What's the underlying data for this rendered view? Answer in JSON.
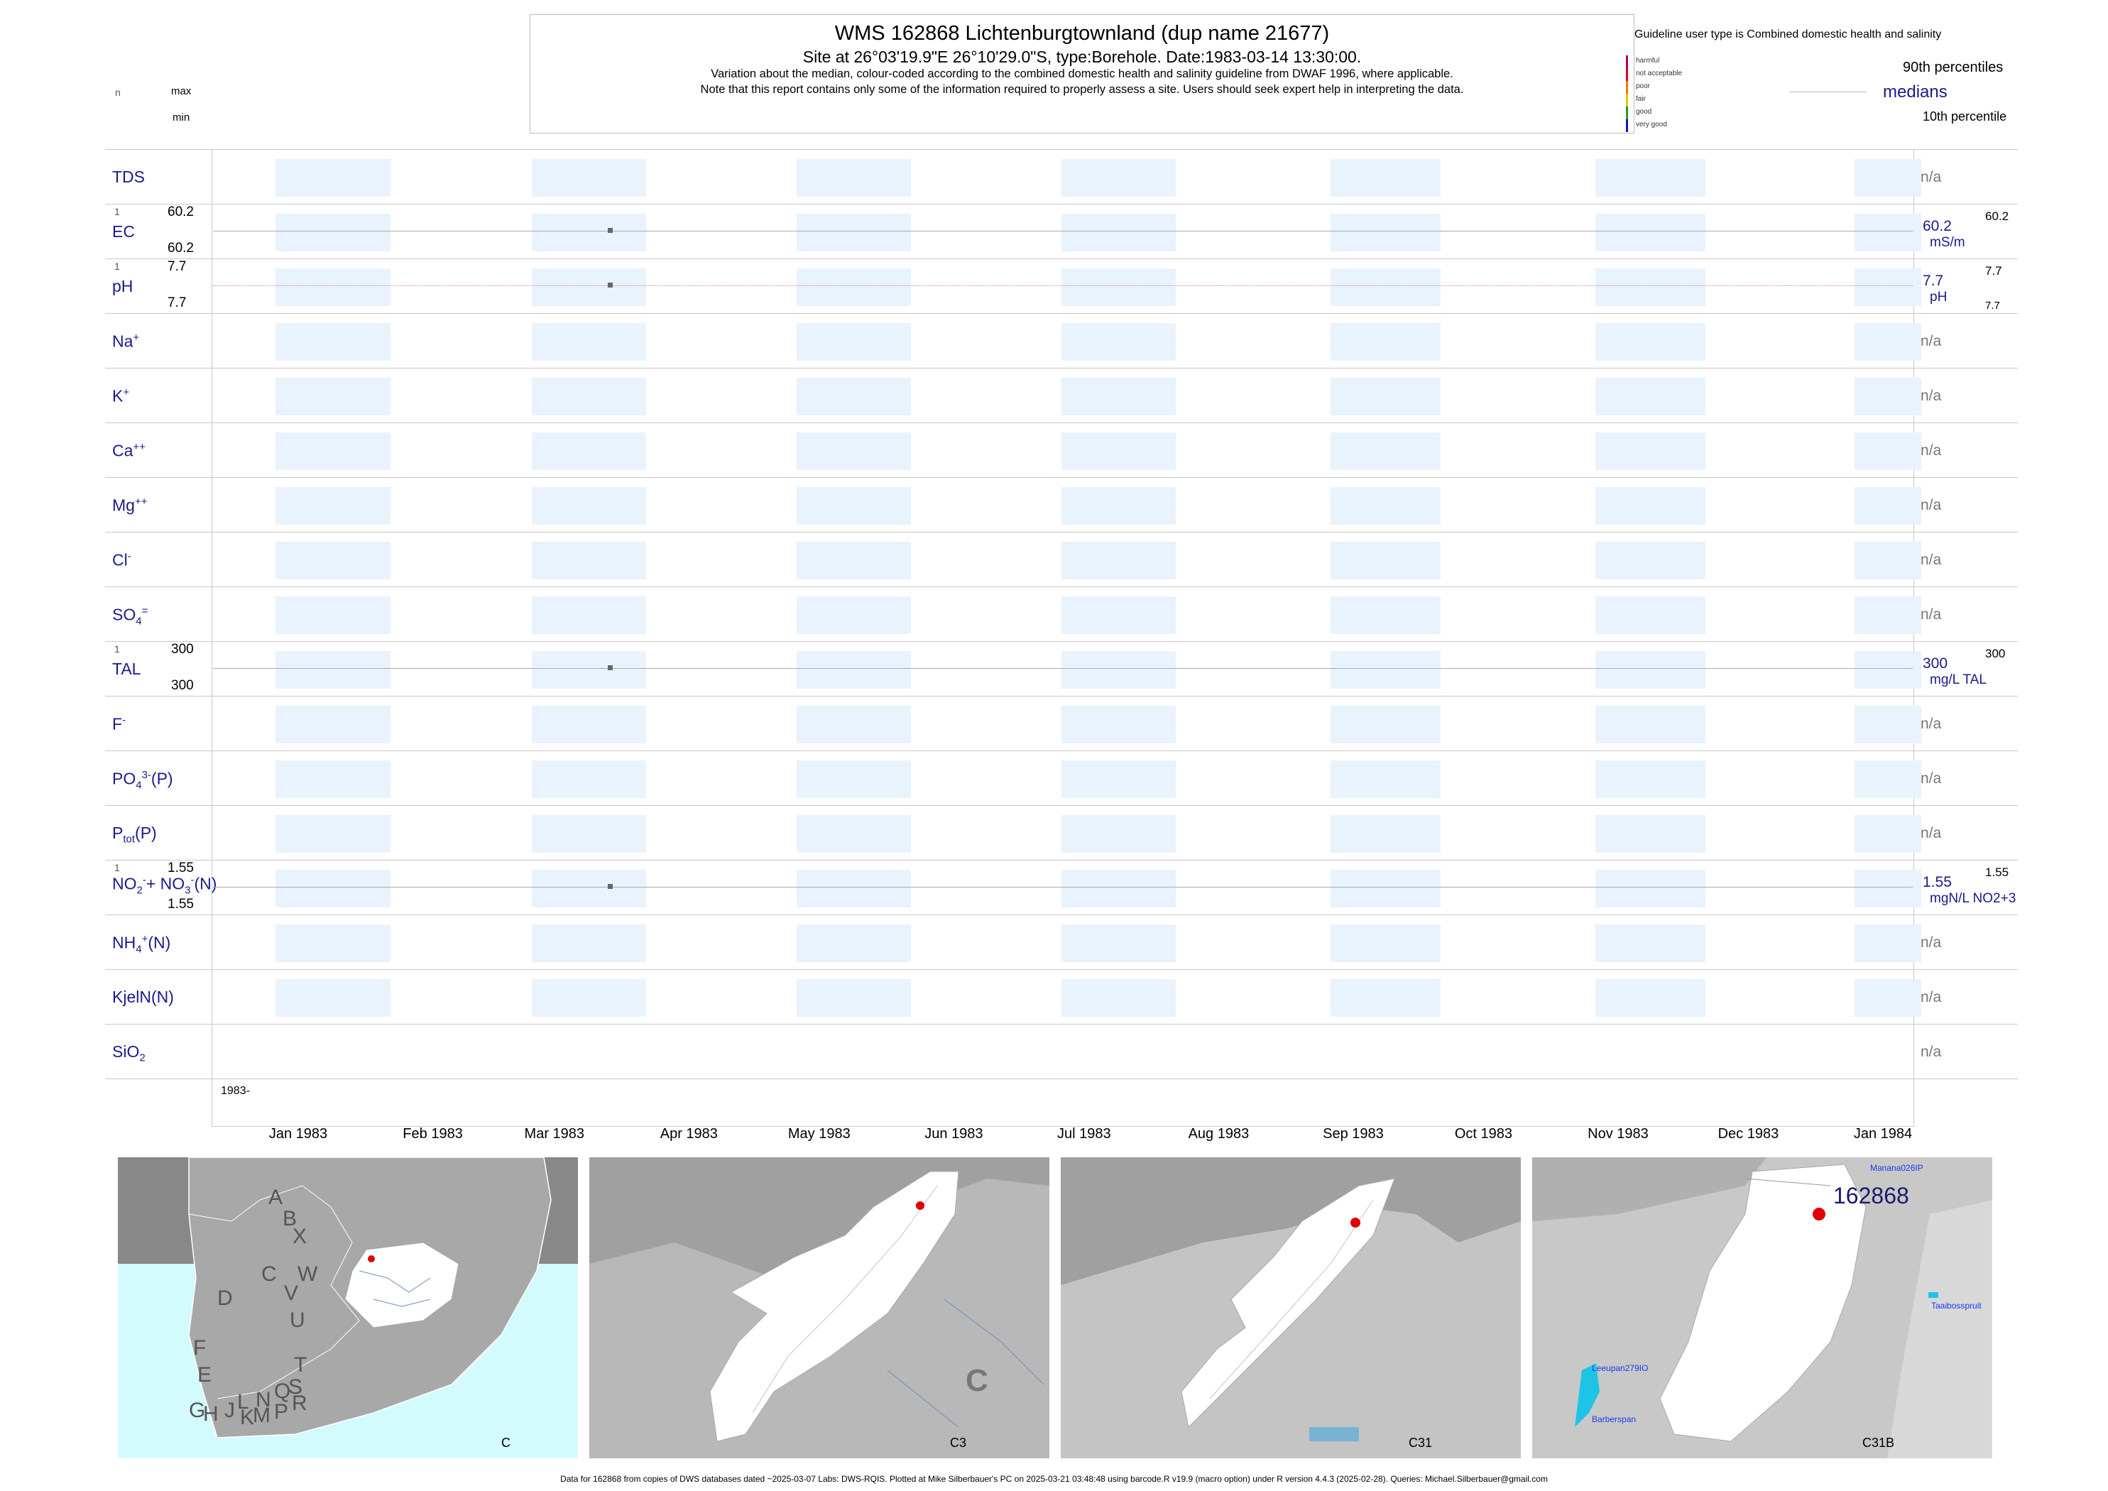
{
  "header": {
    "title": "WMS 162868  Lichtenburgtownland (dup name 21677)",
    "subtitle": "Site at 26°03'19.9\"E 26°10'29.0\"S, type:Borehole. Date:1983-03-14 13:30:00.",
    "note1": "Variation about the median,  colour-coded according to the combined domestic health and salinity guideline from DWAF 1996, where applicable.",
    "note2": "Note that this report contains only some of the information required to properly assess a site. Users should seek expert help in interpreting the data."
  },
  "left_key": {
    "n": "n",
    "max": "max",
    "min": "min"
  },
  "legend": {
    "title": "Guideline user type is Combined domestic health and salinity",
    "classes": [
      {
        "label": "harmful",
        "color": "#b0006f"
      },
      {
        "label": "not acceptable",
        "color": "#e8002a"
      },
      {
        "label": "poor",
        "color": "#f07800"
      },
      {
        "label": "fair",
        "color": "#e6c800"
      },
      {
        "label": "good",
        "color": "#2c9a2c"
      },
      {
        "label": "very good",
        "color": "#1818a8"
      }
    ],
    "p90": "90th percentiles",
    "medians": "medians",
    "p10": "10th percentile"
  },
  "chart_data": {
    "type": "scatter",
    "x_axis": {
      "start_label": "1983-",
      "months": [
        "Jan 1983",
        "Feb 1983",
        "Mar 1983",
        "Apr 1983",
        "May 1983",
        "Jun 1983",
        "Jul 1983",
        "Aug 1983",
        "Sep 1983",
        "Oct 1983",
        "Nov 1983",
        "Dec 1983",
        "Jan 1984"
      ]
    },
    "sample_date": "1983-03-14",
    "parameters": [
      {
        "key": "tds",
        "label_html": "TDS",
        "status": "n/a"
      },
      {
        "key": "ec",
        "label_html": "EC",
        "n": "1",
        "max": "60.2",
        "min": "60.2",
        "median": "60.2",
        "unit": "mS/m",
        "p90": "60.2",
        "value": 60.2
      },
      {
        "key": "ph",
        "label_html": "pH",
        "n": "1",
        "max": "7.7",
        "min": "7.7",
        "median": "7.7",
        "unit": "pH",
        "p90": "7.7",
        "p10": "7.7",
        "value": 7.7
      },
      {
        "key": "na",
        "label_html": "Na<sup>+</sup>",
        "status": "n/a"
      },
      {
        "key": "k",
        "label_html": "K<sup>+</sup>",
        "status": "n/a"
      },
      {
        "key": "ca",
        "label_html": "Ca<sup>++</sup>",
        "status": "n/a"
      },
      {
        "key": "mg",
        "label_html": "Mg<sup>++</sup>",
        "status": "n/a"
      },
      {
        "key": "cl",
        "label_html": "Cl<sup>-</sup>",
        "status": "n/a"
      },
      {
        "key": "so4",
        "label_html": "SO<sub>4</sub><sup>=</sup>",
        "status": "n/a"
      },
      {
        "key": "tal",
        "label_html": "TAL",
        "n": "1",
        "max": "300",
        "min": "300",
        "median": "300",
        "unit": "mg/L TAL",
        "p90": "300",
        "value": 300
      },
      {
        "key": "f",
        "label_html": "F<sup>-</sup>",
        "status": "n/a"
      },
      {
        "key": "po4",
        "label_html": "PO<sub>4</sub><sup>3-</sup>(P)",
        "status": "n/a"
      },
      {
        "key": "ptot",
        "label_html": "P<sub>tot</sub>(P)",
        "status": "n/a"
      },
      {
        "key": "no23",
        "label_html": "NO<sub>2</sub><sup>-</sup>+ NO<sub>3</sub><sup>-</sup>(N)",
        "n": "1",
        "max": "1.55",
        "min": "1.55",
        "median": "1.55",
        "unit": "mgN/L NO2+3",
        "p90": "1.55",
        "value": 1.55
      },
      {
        "key": "nh4",
        "label_html": "NH<sub>4</sub><sup>+</sup>(N)",
        "status": "n/a"
      },
      {
        "key": "kjel",
        "label_html": "KjelN(N)",
        "status": "n/a"
      },
      {
        "key": "sio2",
        "label_html": "SiO<sub>2</sub>",
        "status": "n/a"
      }
    ]
  },
  "maps": [
    {
      "caption": "C",
      "labels": [
        "A",
        "B",
        "X",
        "W",
        "C",
        "D",
        "V",
        "U",
        "T",
        "F",
        "E",
        "G",
        "H",
        "J",
        "K",
        "L",
        "M",
        "N",
        "P",
        "Q",
        "R",
        "S"
      ]
    },
    {
      "caption": "C3",
      "labels": [
        "C"
      ]
    },
    {
      "caption": "C31",
      "labels": []
    },
    {
      "caption": "C31B",
      "site": "162868",
      "places": [
        "Manana026IP",
        "Taaibosspruit",
        "Leeupan279IO",
        "Barberspan"
      ]
    }
  ],
  "footer": "Data for 162868 from copies of DWS databases dated ~2025-03-07 Labs: DWS-RQIS. Plotted at Mike Silberbauer's PC on 2025-03-21 03:48:48 using barcode.R v19.9 (macro option) under R version 4.4.3 (2025-02-28). Queries: Michael.Silberbauer@gmail.com"
}
